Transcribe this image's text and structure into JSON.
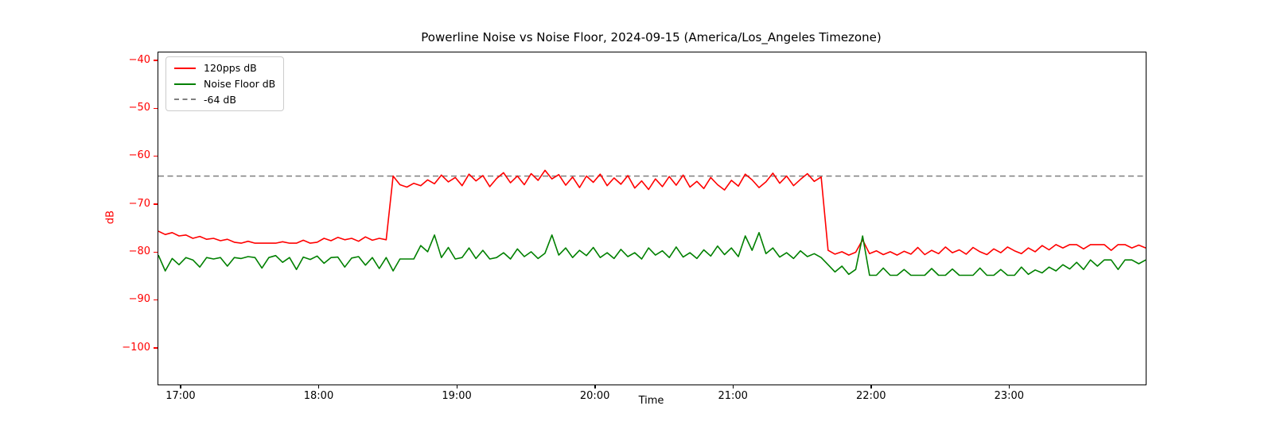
{
  "chart_data": {
    "type": "line",
    "title": "Powerline Noise vs Noise Floor, 2024-09-15 (America/Los_Angeles Timezone)",
    "xlabel": "Time",
    "ylabel": "dB",
    "y_axis_color": "#ff0000",
    "x_axis_color": "#000000",
    "background_color": "#ffffff",
    "ylim": [
      -107.5,
      -38.2
    ],
    "yticks": [
      {
        "value": -40,
        "label": "−40"
      },
      {
        "value": -50,
        "label": "−50"
      },
      {
        "value": -60,
        "label": "−60"
      },
      {
        "value": -70,
        "label": "−70"
      },
      {
        "value": -80,
        "label": "−80"
      },
      {
        "value": -90,
        "label": "−90"
      },
      {
        "value": -100,
        "label": "−100"
      }
    ],
    "xticks": [
      "17:00",
      "18:00",
      "19:00",
      "20:00",
      "21:00",
      "22:00",
      "23:00"
    ],
    "x_start": "16:50",
    "x_interval_minutes": 3,
    "threshold": {
      "label": "-64 dB",
      "value": -64,
      "color": "#7f7f7f",
      "style": "dashed"
    },
    "series": [
      {
        "name": "120pps dB",
        "color": "#ff0000",
        "values": [
          -75.5,
          -76.2,
          -75.8,
          -76.5,
          -76.3,
          -77.0,
          -76.6,
          -77.2,
          -77.0,
          -77.5,
          -77.2,
          -77.8,
          -78.0,
          -77.6,
          -78.0,
          -78.0,
          -78.0,
          -78.0,
          -77.7,
          -78.0,
          -78.0,
          -77.4,
          -78.0,
          -77.8,
          -77.0,
          -77.5,
          -76.8,
          -77.3,
          -77.0,
          -77.6,
          -76.7,
          -77.4,
          -77.0,
          -77.3,
          -64.0,
          -65.8,
          -66.3,
          -65.5,
          -66.0,
          -64.8,
          -65.6,
          -63.8,
          -65.2,
          -64.3,
          -66.0,
          -63.6,
          -65.0,
          -63.9,
          -66.2,
          -64.5,
          -63.3,
          -65.4,
          -64.0,
          -65.8,
          -63.5,
          -64.9,
          -62.8,
          -64.6,
          -63.7,
          -65.9,
          -64.2,
          -66.4,
          -64.0,
          -65.3,
          -63.6,
          -66.0,
          -64.4,
          -65.7,
          -63.9,
          -66.5,
          -65.0,
          -66.8,
          -64.6,
          -66.2,
          -64.1,
          -65.9,
          -63.8,
          -66.3,
          -65.1,
          -66.6,
          -64.3,
          -65.8,
          -66.9,
          -64.9,
          -66.1,
          -63.6,
          -64.8,
          -66.4,
          -65.2,
          -63.4,
          -65.5,
          -64.0,
          -66.0,
          -64.7,
          -63.5,
          -65.1,
          -64.2,
          -79.5,
          -80.3,
          -79.8,
          -80.5,
          -79.9,
          -77.3,
          -80.2,
          -79.6,
          -80.4,
          -79.8,
          -80.5,
          -79.7,
          -80.3,
          -78.9,
          -80.4,
          -79.5,
          -80.2,
          -78.8,
          -80.0,
          -79.4,
          -80.3,
          -78.9,
          -79.8,
          -80.4,
          -79.2,
          -80.0,
          -78.8,
          -79.6,
          -80.2,
          -79.0,
          -79.8,
          -78.5,
          -79.4,
          -78.3,
          -79.0,
          -78.3,
          -78.3,
          -79.2,
          -78.3,
          -78.3,
          -78.3,
          -79.5,
          -78.3,
          -78.3,
          -79.0,
          -78.4,
          -79.0
        ]
      },
      {
        "name": "Noise Floor dB",
        "color": "#008000",
        "values": [
          -80.5,
          -83.8,
          -81.2,
          -82.5,
          -81.0,
          -81.5,
          -83.0,
          -81.0,
          -81.3,
          -81.0,
          -82.8,
          -81.0,
          -81.2,
          -80.8,
          -81.0,
          -83.2,
          -81.0,
          -80.6,
          -82.0,
          -81.0,
          -83.5,
          -80.9,
          -81.4,
          -80.7,
          -82.2,
          -81.0,
          -80.9,
          -83.0,
          -81.1,
          -80.8,
          -82.6,
          -81.0,
          -83.3,
          -81.0,
          -83.8,
          -81.3,
          -81.3,
          -81.3,
          -78.5,
          -79.8,
          -76.3,
          -81.0,
          -78.9,
          -81.3,
          -81.0,
          -79.0,
          -81.2,
          -79.5,
          -81.3,
          -81.0,
          -80.0,
          -81.3,
          -79.2,
          -80.8,
          -79.8,
          -81.2,
          -80.1,
          -76.3,
          -80.5,
          -79.0,
          -81.0,
          -79.5,
          -80.6,
          -78.9,
          -81.0,
          -80.0,
          -81.2,
          -79.3,
          -80.8,
          -80.0,
          -81.3,
          -79.0,
          -80.5,
          -79.6,
          -81.0,
          -78.8,
          -80.9,
          -80.0,
          -81.2,
          -79.4,
          -80.7,
          -78.6,
          -80.4,
          -79.0,
          -80.8,
          -76.5,
          -79.5,
          -75.8,
          -80.2,
          -79.0,
          -80.9,
          -80.0,
          -81.2,
          -79.6,
          -80.8,
          -80.2,
          -81.0,
          -82.5,
          -84.0,
          -82.8,
          -84.5,
          -83.5,
          -76.5,
          -84.7,
          -84.7,
          -83.2,
          -84.7,
          -84.7,
          -83.5,
          -84.7,
          -84.7,
          -84.7,
          -83.3,
          -84.7,
          -84.7,
          -83.4,
          -84.7,
          -84.7,
          -84.7,
          -83.2,
          -84.7,
          -84.7,
          -83.5,
          -84.7,
          -84.7,
          -83.0,
          -84.5,
          -83.6,
          -84.2,
          -83.0,
          -83.8,
          -82.5,
          -83.4,
          -82.0,
          -83.5,
          -81.5,
          -82.8,
          -81.5,
          -81.5,
          -83.5,
          -81.5,
          -81.5,
          -82.3,
          -81.5
        ]
      }
    ],
    "legend_position": "upper-left"
  }
}
